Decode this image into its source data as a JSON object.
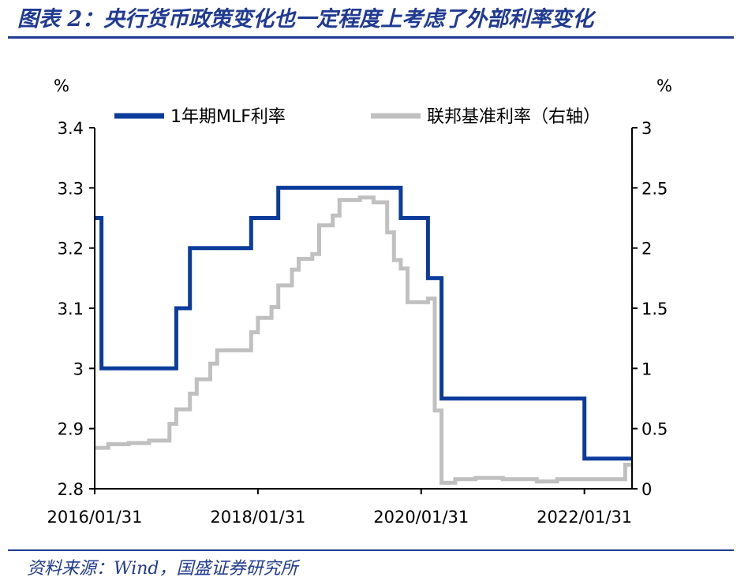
{
  "title": "图表 2：央行货币政策变化也一定程度上考虑了外部利率变化",
  "source": "资料来源：Wind，国盛证券研究所",
  "chart_data": {
    "type": "line",
    "left_unit": "%",
    "right_unit": "%",
    "x_ticks": [
      "2016/01/31",
      "2018/01/31",
      "2020/01/31",
      "2022/01/31"
    ],
    "left_axis": {
      "range": [
        2.8,
        3.4
      ],
      "ticks": [
        "2.8",
        "2.9",
        "3",
        "3.1",
        "3.2",
        "3.3",
        "3.4"
      ]
    },
    "right_axis": {
      "range": [
        0,
        3
      ],
      "ticks": [
        "0",
        "0.5",
        "1",
        "1.5",
        "2",
        "2.5",
        "3"
      ]
    },
    "x_range": [
      "2016-01",
      "2022-08"
    ],
    "grid": false,
    "legend_position": "top",
    "series": [
      {
        "name": "1年期MLF利率",
        "axis": "left",
        "color": "#0b3c9c",
        "step": true,
        "points": [
          [
            "2016-01",
            3.25
          ],
          [
            "2016-02",
            3.0
          ],
          [
            "2017-01",
            3.1
          ],
          [
            "2017-03",
            3.2
          ],
          [
            "2017-12",
            3.25
          ],
          [
            "2018-04",
            3.3
          ],
          [
            "2019-10",
            3.25
          ],
          [
            "2020-02",
            3.15
          ],
          [
            "2020-04",
            2.95
          ],
          [
            "2022-01",
            2.85
          ],
          [
            "2022-08",
            2.85
          ]
        ]
      },
      {
        "name": "联邦基准利率（右轴）",
        "axis": "right",
        "color": "#c0c0c0",
        "step": true,
        "points": [
          [
            "2016-01",
            0.34
          ],
          [
            "2016-03",
            0.37
          ],
          [
            "2016-06",
            0.38
          ],
          [
            "2016-09",
            0.4
          ],
          [
            "2016-12",
            0.54
          ],
          [
            "2017-01",
            0.66
          ],
          [
            "2017-03",
            0.79
          ],
          [
            "2017-04",
            0.91
          ],
          [
            "2017-06",
            1.04
          ],
          [
            "2017-07",
            1.15
          ],
          [
            "2017-12",
            1.3
          ],
          [
            "2018-01",
            1.42
          ],
          [
            "2018-03",
            1.51
          ],
          [
            "2018-04",
            1.69
          ],
          [
            "2018-06",
            1.82
          ],
          [
            "2018-07",
            1.91
          ],
          [
            "2018-09",
            1.95
          ],
          [
            "2018-10",
            2.19
          ],
          [
            "2018-12",
            2.27
          ],
          [
            "2019-01",
            2.4
          ],
          [
            "2019-04",
            2.42
          ],
          [
            "2019-06",
            2.38
          ],
          [
            "2019-08",
            2.13
          ],
          [
            "2019-09",
            1.9
          ],
          [
            "2019-10",
            1.83
          ],
          [
            "2019-11",
            1.55
          ],
          [
            "2020-02",
            1.58
          ],
          [
            "2020-03",
            0.65
          ],
          [
            "2020-04",
            0.05
          ],
          [
            "2020-06",
            0.08
          ],
          [
            "2020-09",
            0.09
          ],
          [
            "2021-01",
            0.08
          ],
          [
            "2021-06",
            0.06
          ],
          [
            "2021-09",
            0.08
          ],
          [
            "2022-01",
            0.08
          ],
          [
            "2022-06",
            0.08
          ],
          [
            "2022-07",
            0.2
          ],
          [
            "2022-08",
            0.2
          ]
        ]
      }
    ]
  }
}
